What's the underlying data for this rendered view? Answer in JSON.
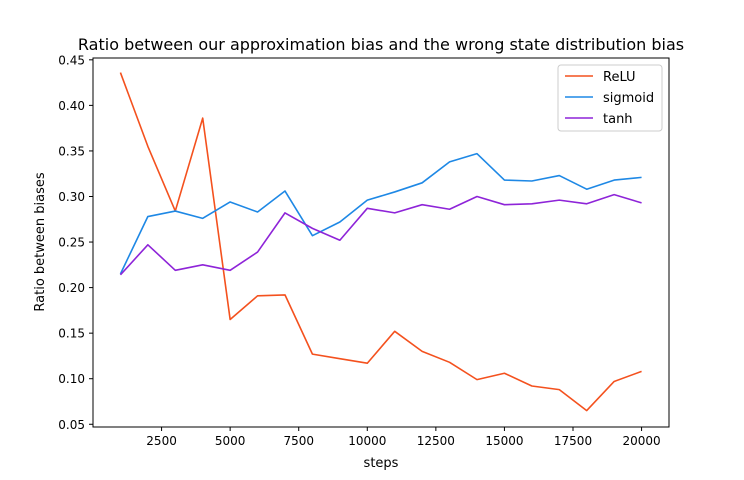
{
  "chart_data": {
    "type": "line",
    "title": "Ratio between our approximation bias and the wrong state distribution bias",
    "xlabel": "steps",
    "ylabel": "Ratio between biases",
    "xlim": [
      0,
      21000
    ],
    "ylim": [
      0.047,
      0.452
    ],
    "xticks": [
      2500,
      5000,
      7500,
      10000,
      12500,
      15000,
      17500,
      20000
    ],
    "xtick_labels": [
      "2500",
      "5000",
      "7500",
      "10000",
      "12500",
      "15000",
      "17500",
      "20000"
    ],
    "yticks": [
      0.05,
      0.1,
      0.15,
      0.2,
      0.25,
      0.3,
      0.35,
      0.4,
      0.45
    ],
    "ytick_labels": [
      "0.05",
      "0.10",
      "0.15",
      "0.20",
      "0.25",
      "0.30",
      "0.35",
      "0.40",
      "0.45"
    ],
    "grid": false,
    "legend_position": "top-right",
    "x": [
      1000,
      2000,
      3000,
      4000,
      5000,
      6000,
      7000,
      8000,
      9000,
      10000,
      11000,
      12000,
      13000,
      14000,
      15000,
      16000,
      17000,
      18000,
      19000,
      20000
    ],
    "series": [
      {
        "name": "ReLU",
        "color": "#f4511e",
        "values": [
          0.436,
          0.355,
          0.284,
          0.386,
          0.165,
          0.191,
          0.192,
          0.127,
          0.122,
          0.117,
          0.152,
          0.13,
          0.118,
          0.099,
          0.106,
          0.092,
          0.088,
          0.065,
          0.097,
          0.108
        ]
      },
      {
        "name": "sigmoid",
        "color": "#1e88e5",
        "values": [
          0.215,
          0.278,
          0.284,
          0.276,
          0.294,
          0.283,
          0.306,
          0.257,
          0.272,
          0.296,
          0.305,
          0.315,
          0.338,
          0.347,
          0.318,
          0.317,
          0.323,
          0.308,
          0.318,
          0.321
        ]
      },
      {
        "name": "tanh",
        "color": "#8e24d8",
        "values": [
          0.214,
          0.247,
          0.219,
          0.225,
          0.219,
          0.239,
          0.282,
          0.265,
          0.252,
          0.287,
          0.282,
          0.291,
          0.286,
          0.3,
          0.291,
          0.292,
          0.296,
          0.292,
          0.302,
          0.293
        ]
      }
    ]
  }
}
